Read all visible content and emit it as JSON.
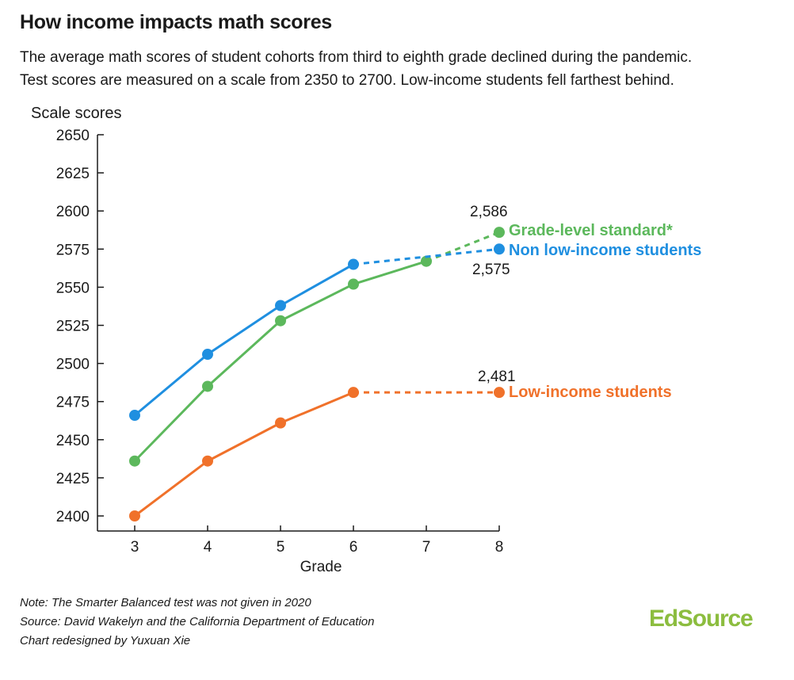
{
  "header": {
    "title": "How income impacts math scores",
    "subtitle_lines": [
      "The average math scores of student cohorts from third to eighth grade declined during the pandemic.",
      "Test scores are measured on a scale from 2350 to 2700. Low-income students fell farthest behind."
    ]
  },
  "notes": {
    "note": "Note: The Smarter Balanced test was not given in 2020",
    "source": "Source: David Wakelyn and the California Department of Education",
    "credit": "Chart redesigned by Yuxuan Xie"
  },
  "logo": {
    "text": "EdSource",
    "color": "#8cbd3f"
  },
  "chart_data": {
    "type": "line",
    "title": "How income impacts math scores",
    "xlabel": "Grade",
    "ylabel": "Scale scores",
    "x": [
      3,
      4,
      5,
      6,
      7,
      8
    ],
    "xlim": [
      2.5,
      8
    ],
    "ylim": [
      2400,
      2650
    ],
    "yticks": [
      2400,
      2425,
      2450,
      2475,
      2500,
      2525,
      2550,
      2575,
      2600,
      2625,
      2650
    ],
    "yticklabels": [
      "2400",
      "2425",
      "2450",
      "2475",
      "2500",
      "2525",
      "2550",
      "2575",
      "2600",
      "2625",
      "2650"
    ],
    "xticklabels": [
      "3",
      "4",
      "5",
      "6",
      "7",
      "8"
    ],
    "grid": false,
    "legend": "direct-labels-right",
    "series": [
      {
        "name": "Grade-level standard*",
        "color": "#5cb85c",
        "x": [
          3,
          4,
          5,
          6,
          7,
          8
        ],
        "values": [
          2436,
          2485,
          2528,
          2552,
          2567,
          2586
        ],
        "dashed_from_index": 4,
        "end_label": "2,586"
      },
      {
        "name": "Non low-income students",
        "color": "#1f8fe0",
        "x": [
          3,
          4,
          5,
          6,
          8
        ],
        "values": [
          2466,
          2506,
          2538,
          2565,
          2575
        ],
        "dashed_from_index": 3,
        "end_label": "2,575"
      },
      {
        "name": "Low-income students",
        "color": "#f0712a",
        "x": [
          3,
          4,
          5,
          6,
          8
        ],
        "values": [
          2400,
          2436,
          2461,
          2481,
          2481
        ],
        "dashed_from_index": 3,
        "end_label": "2,481"
      }
    ]
  }
}
